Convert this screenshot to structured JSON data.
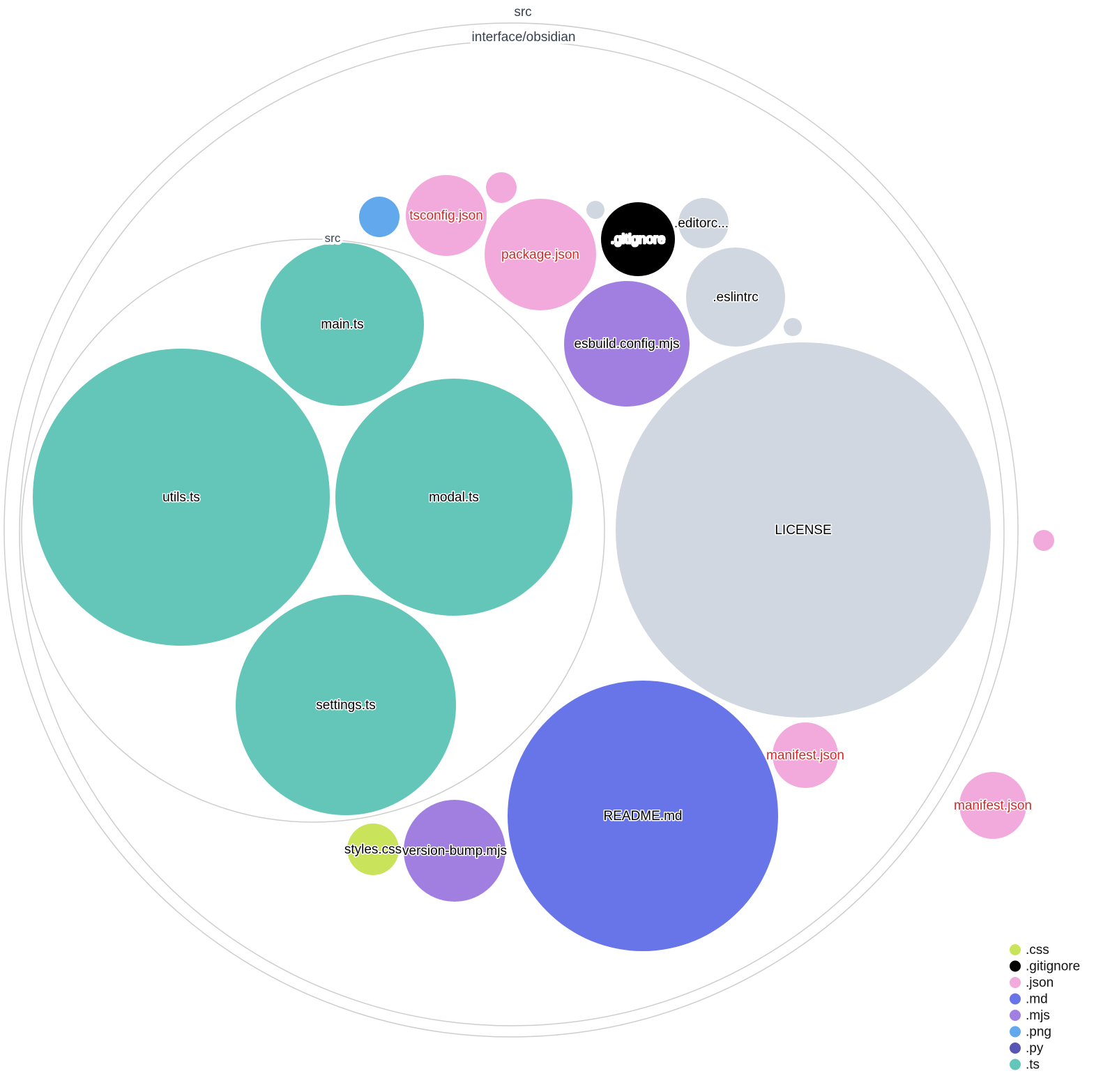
{
  "folders": [
    {
      "name": "src"
    },
    {
      "name": "interface/obsidian"
    },
    {
      "name": "src"
    }
  ],
  "files": [
    {
      "name": "",
      "ext": ".png"
    },
    {
      "name": "tsconfig.json",
      "ext": ".json"
    },
    {
      "name": "",
      "ext": ".json"
    },
    {
      "name": "package.json",
      "ext": ".json"
    },
    {
      "name": "",
      "ext": ""
    },
    {
      "name": ".gitignore",
      "ext": ".gitignore"
    },
    {
      "name": ".editorc...",
      "ext": ""
    },
    {
      "name": ".eslintrc",
      "ext": ""
    },
    {
      "name": "",
      "ext": ""
    },
    {
      "name": "esbuild.config.mjs",
      "ext": ".mjs"
    },
    {
      "name": "LICENSE",
      "ext": ""
    },
    {
      "name": "main.ts",
      "ext": ".ts"
    },
    {
      "name": "utils.ts",
      "ext": ".ts"
    },
    {
      "name": "modal.ts",
      "ext": ".ts"
    },
    {
      "name": "settings.ts",
      "ext": ".ts"
    },
    {
      "name": "README.md",
      "ext": ".md"
    },
    {
      "name": "manifest.json",
      "ext": ".json"
    },
    {
      "name": "manifest.json",
      "ext": ".json"
    },
    {
      "name": "",
      "ext": ".json"
    },
    {
      "name": "version-bump.mjs",
      "ext": ".mjs"
    },
    {
      "name": "styles.css",
      "ext": ".css"
    }
  ],
  "colors": {
    ".css": "#c9e35a",
    ".gitignore": "#000000",
    ".json": "#f1aadb",
    ".md": "#6875e8",
    ".mjs": "#a07fe0",
    ".png": "#62a8ec",
    ".py": "#5756b5",
    ".ts": "#63c6b8",
    "": "#d1d7e0"
  },
  "label_colors": {
    ".json": "#d62828",
    ".gitignore": "#ffffff",
    "default": "#000000"
  },
  "legend": [
    ".css",
    ".gitignore",
    ".json",
    ".md",
    ".mjs",
    ".png",
    ".py",
    ".ts"
  ]
}
